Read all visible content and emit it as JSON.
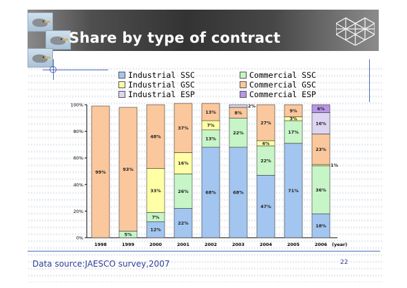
{
  "slide": {
    "title": "Share by type of contract",
    "source": "Data source:JAESCO survey,2007",
    "page_number": "22"
  },
  "chart_data": {
    "type": "bar",
    "stacked": true,
    "categories": [
      "1998",
      "1999",
      "2000",
      "2001",
      "2002",
      "2003",
      "2004",
      "2005",
      "2006"
    ],
    "xlabel": "(year)",
    "ylim": [
      0,
      100
    ],
    "yticks": [
      "0%",
      "20%",
      "40%",
      "60%",
      "80%",
      "100%"
    ],
    "legend_position": "top",
    "series": [
      {
        "name": "Industrial SSC",
        "color": "#a3c6f0",
        "values": [
          0,
          0,
          12,
          22,
          68,
          68,
          47,
          71,
          18
        ],
        "labels": [
          "",
          "",
          "12%",
          "22%",
          "68%",
          "68%",
          "47%",
          "71%",
          "18%"
        ]
      },
      {
        "name": "Commercial SSC",
        "color": "#c7f5c7",
        "values": [
          0,
          5,
          7,
          26,
          13,
          22,
          22,
          17,
          36
        ],
        "labels": [
          "",
          "5%",
          "7%",
          "26%",
          "13%",
          "22%",
          "22%",
          "17%",
          "36%"
        ]
      },
      {
        "name": "Industrial GSC",
        "color": "#ffffa6",
        "values": [
          0,
          0,
          33,
          16,
          7,
          0,
          4,
          3,
          1
        ],
        "labels": [
          "",
          "",
          "33%",
          "16%",
          "7%",
          "",
          "4%",
          "3%",
          "1%"
        ]
      },
      {
        "name": "Commercial GSC",
        "color": "#fbc79c",
        "values": [
          99,
          93,
          48,
          37,
          13,
          8,
          27,
          9,
          23
        ],
        "labels": [
          "99%",
          "93%",
          "48%",
          "37%",
          "13%",
          "8%",
          "27%",
          "9%",
          "23%"
        ]
      },
      {
        "name": "Industrial ESP",
        "color": "#dcd6f2",
        "values": [
          0,
          0,
          0,
          0,
          0,
          2,
          0,
          0,
          16
        ],
        "labels": [
          "",
          "",
          "",
          "",
          "",
          "2%",
          "",
          "",
          "16%"
        ]
      },
      {
        "name": "Commercial ESP",
        "color": "#b896e6",
        "values": [
          0,
          0,
          0,
          0,
          0,
          0,
          0,
          0,
          6
        ],
        "labels": [
          "",
          "",
          "",
          "",
          "",
          "",
          "",
          "",
          "6%"
        ]
      }
    ]
  }
}
